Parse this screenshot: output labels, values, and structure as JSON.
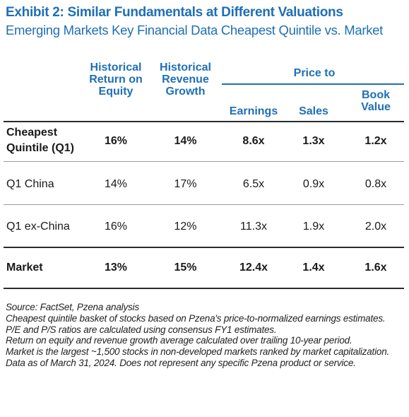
{
  "title": "Exhibit 2: Similar Fundamentals at Different Valuations",
  "subtitle": "Emerging Markets Key Financial Data Cheapest Quintile vs. Market",
  "table": {
    "header_group": "Price to",
    "col_roe": [
      "Historical",
      "Return on",
      "Equity"
    ],
    "col_rev": [
      "Historical",
      "Revenue",
      "Growth"
    ],
    "col_earnings": "Earnings",
    "col_sales": "Sales",
    "col_book": [
      "Book",
      "Value"
    ],
    "rows": [
      {
        "label": [
          "Cheapest",
          "Quintile (Q1)"
        ],
        "roe": "16%",
        "rev": "14%",
        "earnings": "8.6x",
        "sales": "1.3x",
        "book": "1.2x"
      },
      {
        "label": [
          "Q1 China"
        ],
        "roe": "14%",
        "rev": "17%",
        "earnings": "6.5x",
        "sales": "0.9x",
        "book": "0.8x"
      },
      {
        "label": [
          "Q1 ex-China"
        ],
        "roe": "16%",
        "rev": "12%",
        "earnings": "11.3x",
        "sales": "1.9x",
        "book": "2.0x"
      },
      {
        "label": [
          "Market"
        ],
        "roe": "13%",
        "rev": "15%",
        "earnings": "12.4x",
        "sales": "1.4x",
        "book": "1.6x"
      }
    ]
  },
  "notes": [
    "Source: FactSet, Pzena analysis",
    "Cheapest quintile basket of stocks based on Pzena's price-to-normalized earnings estimates.",
    "P/E and P/S ratios are calculated using consensus FY1 estimates.",
    "Return on equity and revenue growth average calculated over trailing 10-year period.",
    "Market is the largest ~1,500 stocks in non-developed markets ranked by market capitalization.",
    "Data as of March 31, 2024. Does not represent any specific Pzena product or service."
  ]
}
